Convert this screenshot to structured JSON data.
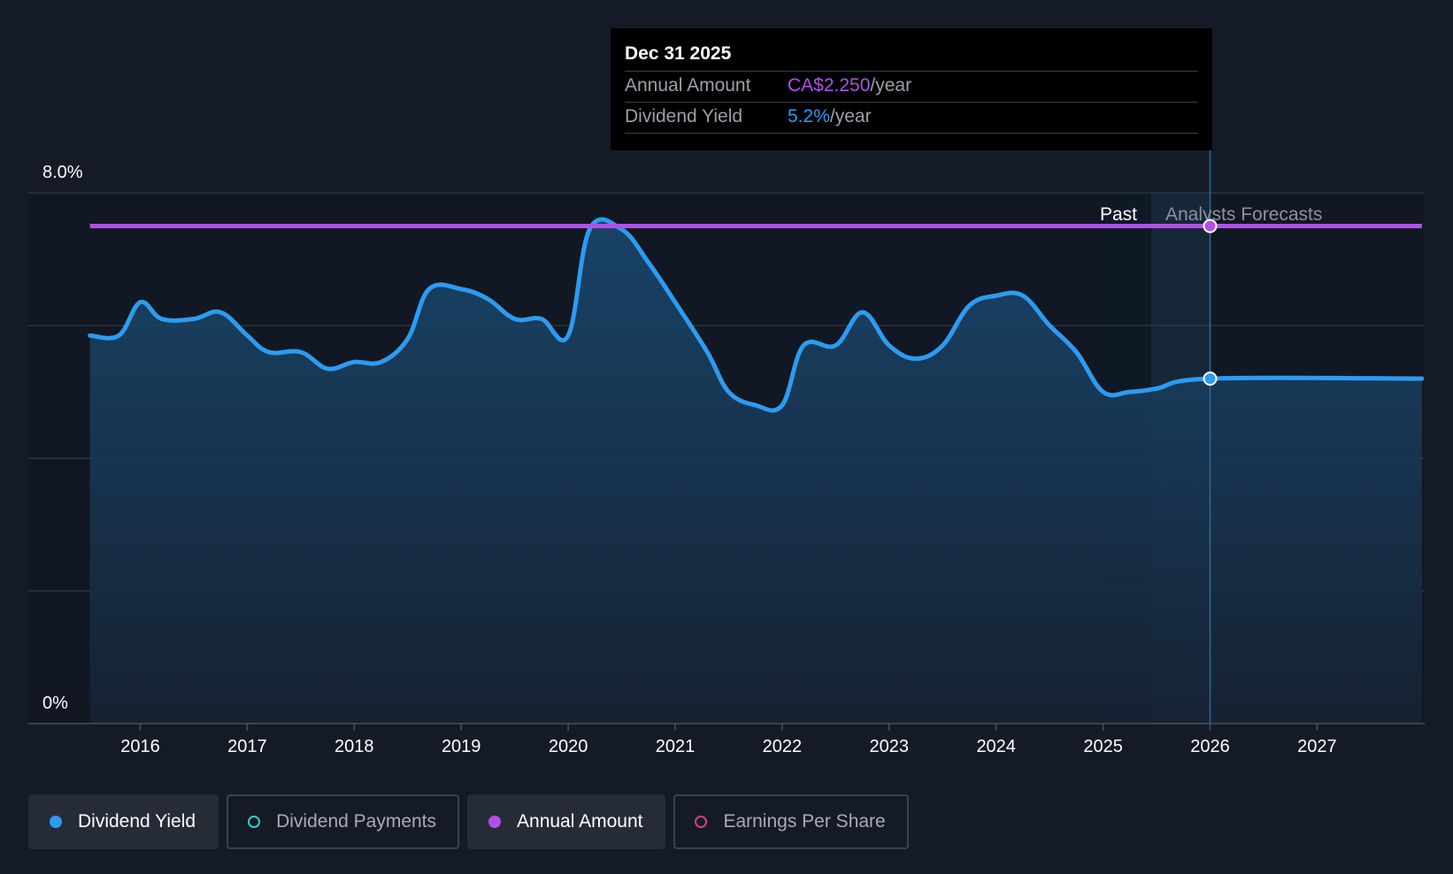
{
  "tooltip": {
    "date": "Dec 31 2025",
    "annual_amount_label": "Annual Amount",
    "annual_amount_value": "CA$2.250",
    "annual_amount_unit": "/year",
    "dividend_yield_label": "Dividend Yield",
    "dividend_yield_value": "5.2%",
    "dividend_yield_unit": "/year"
  },
  "regions": {
    "past_label": "Past",
    "forecast_label": "Analysts Forecasts"
  },
  "legend": [
    {
      "label": "Dividend Yield",
      "color": "#2d9bf0",
      "active": true,
      "filled": true
    },
    {
      "label": "Dividend Payments",
      "color": "#2fd1c1",
      "active": false,
      "filled": false
    },
    {
      "label": "Annual Amount",
      "color": "#b150e8",
      "active": true,
      "filled": true
    },
    {
      "label": "Earnings Per Share",
      "color": "#d4417f",
      "active": false,
      "filled": false
    }
  ],
  "colors": {
    "yield": "#2d9bf0",
    "amount": "#b150e8",
    "background": "#151b26"
  },
  "chart_data": {
    "type": "line",
    "x_ticks": [
      "2016",
      "2017",
      "2018",
      "2019",
      "2020",
      "2021",
      "2022",
      "2023",
      "2024",
      "2025",
      "2026",
      "2027"
    ],
    "y_ticks": [
      "0%",
      "8.0%"
    ],
    "ylim": [
      0,
      8.0
    ],
    "xlim": [
      2015.0,
      2027.98
    ],
    "grid": true,
    "series": [
      {
        "name": "Dividend Yield",
        "unit": "%",
        "color": "#2d9bf0",
        "points": [
          [
            2015.53,
            5.85
          ],
          [
            2015.8,
            5.85
          ],
          [
            2016.0,
            6.35
          ],
          [
            2016.2,
            6.1
          ],
          [
            2016.5,
            6.1
          ],
          [
            2016.75,
            6.2
          ],
          [
            2017.0,
            5.85
          ],
          [
            2017.2,
            5.6
          ],
          [
            2017.5,
            5.6
          ],
          [
            2017.75,
            5.35
          ],
          [
            2018.0,
            5.45
          ],
          [
            2018.25,
            5.45
          ],
          [
            2018.5,
            5.8
          ],
          [
            2018.7,
            6.55
          ],
          [
            2019.0,
            6.55
          ],
          [
            2019.25,
            6.4
          ],
          [
            2019.5,
            6.1
          ],
          [
            2019.75,
            6.1
          ],
          [
            2020.0,
            5.85
          ],
          [
            2020.2,
            7.45
          ],
          [
            2020.5,
            7.45
          ],
          [
            2020.75,
            6.95
          ],
          [
            2021.0,
            6.35
          ],
          [
            2021.3,
            5.6
          ],
          [
            2021.5,
            5.0
          ],
          [
            2021.75,
            4.8
          ],
          [
            2022.0,
            4.8
          ],
          [
            2022.2,
            5.7
          ],
          [
            2022.5,
            5.7
          ],
          [
            2022.75,
            6.2
          ],
          [
            2023.0,
            5.7
          ],
          [
            2023.25,
            5.5
          ],
          [
            2023.5,
            5.7
          ],
          [
            2023.75,
            6.3
          ],
          [
            2024.0,
            6.45
          ],
          [
            2024.25,
            6.45
          ],
          [
            2024.5,
            6.0
          ],
          [
            2024.75,
            5.6
          ],
          [
            2025.0,
            5.0
          ],
          [
            2025.25,
            5.0
          ],
          [
            2025.5,
            5.05
          ],
          [
            2026.0,
            5.2
          ],
          [
            2027.98,
            5.2
          ]
        ]
      },
      {
        "name": "Annual Amount",
        "color": "#b150e8",
        "points": [
          [
            2015.53,
            7.5
          ],
          [
            2027.98,
            7.5
          ]
        ]
      }
    ],
    "highlight_x": 2026.0,
    "past_end": 2025.0,
    "forecast_start": 2025.45
  }
}
